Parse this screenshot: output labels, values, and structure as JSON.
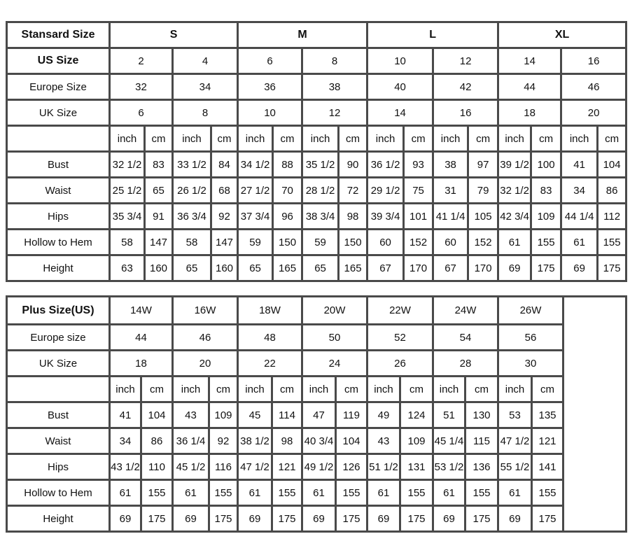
{
  "standard": {
    "header_label": "Stansard Size",
    "groups": [
      "S",
      "M",
      "L",
      "XL"
    ],
    "size_rows": [
      {
        "label": "US Size",
        "values": [
          "2",
          "4",
          "6",
          "8",
          "10",
          "12",
          "14",
          "16"
        ]
      },
      {
        "label": "Europe Size",
        "values": [
          "32",
          "34",
          "36",
          "38",
          "40",
          "42",
          "44",
          "46"
        ]
      },
      {
        "label": "UK Size",
        "values": [
          "6",
          "8",
          "10",
          "12",
          "14",
          "16",
          "18",
          "20"
        ]
      }
    ],
    "units": [
      "inch",
      "cm"
    ],
    "measure_rows": [
      {
        "label": "Bust",
        "values": [
          "32 1/2",
          "83",
          "33 1/2",
          "84",
          "34 1/2",
          "88",
          "35 1/2",
          "90",
          "36 1/2",
          "93",
          "38",
          "97",
          "39 1/2",
          "100",
          "41",
          "104"
        ]
      },
      {
        "label": "Waist",
        "values": [
          "25 1/2",
          "65",
          "26 1/2",
          "68",
          "27 1/2",
          "70",
          "28 1/2",
          "72",
          "29 1/2",
          "75",
          "31",
          "79",
          "32 1/2",
          "83",
          "34",
          "86"
        ]
      },
      {
        "label": "Hips",
        "values": [
          "35 3/4",
          "91",
          "36 3/4",
          "92",
          "37 3/4",
          "96",
          "38 3/4",
          "98",
          "39 3/4",
          "101",
          "41 1/4",
          "105",
          "42 3/4",
          "109",
          "44 1/4",
          "112"
        ]
      },
      {
        "label": "Hollow to Hem",
        "values": [
          "58",
          "147",
          "58",
          "147",
          "59",
          "150",
          "59",
          "150",
          "60",
          "152",
          "60",
          "152",
          "61",
          "155",
          "61",
          "155"
        ]
      },
      {
        "label": "Height",
        "values": [
          "63",
          "160",
          "65",
          "160",
          "65",
          "165",
          "65",
          "165",
          "67",
          "170",
          "67",
          "170",
          "69",
          "175",
          "69",
          "175"
        ]
      }
    ]
  },
  "plus": {
    "header_label": "Plus Size(US)",
    "sizes": [
      "14W",
      "16W",
      "18W",
      "20W",
      "22W",
      "24W",
      "26W"
    ],
    "size_rows": [
      {
        "label": "Europe size",
        "values": [
          "44",
          "46",
          "48",
          "50",
          "52",
          "54",
          "56"
        ]
      },
      {
        "label": "UK Size",
        "values": [
          "18",
          "20",
          "22",
          "24",
          "26",
          "28",
          "30"
        ]
      }
    ],
    "units": [
      "inch",
      "cm"
    ],
    "measure_rows": [
      {
        "label": "Bust",
        "values": [
          "41",
          "104",
          "43",
          "109",
          "45",
          "114",
          "47",
          "119",
          "49",
          "124",
          "51",
          "130",
          "53",
          "135"
        ]
      },
      {
        "label": "Waist",
        "values": [
          "34",
          "86",
          "36 1/4",
          "92",
          "38 1/2",
          "98",
          "40 3/4",
          "104",
          "43",
          "109",
          "45 1/4",
          "115",
          "47 1/2",
          "121"
        ]
      },
      {
        "label": "Hips",
        "values": [
          "43 1/2",
          "110",
          "45 1/2",
          "116",
          "47 1/2",
          "121",
          "49 1/2",
          "126",
          "51 1/2",
          "131",
          "53 1/2",
          "136",
          "55 1/2",
          "141"
        ]
      },
      {
        "label": "Hollow to Hem",
        "values": [
          "61",
          "155",
          "61",
          "155",
          "61",
          "155",
          "61",
          "155",
          "61",
          "155",
          "61",
          "155",
          "61",
          "155"
        ]
      },
      {
        "label": "Height",
        "values": [
          "69",
          "175",
          "69",
          "175",
          "69",
          "175",
          "69",
          "175",
          "69",
          "175",
          "69",
          "175",
          "69",
          "175"
        ]
      }
    ]
  }
}
